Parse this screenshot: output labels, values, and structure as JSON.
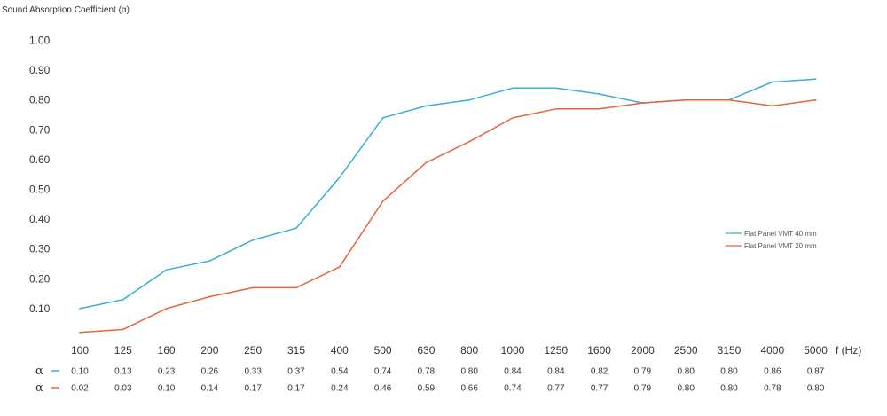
{
  "chart_data": {
    "type": "line",
    "ylabel": "Sound Absorption Coefficient (α)",
    "xunit": "f (Hz)",
    "ylim": [
      0.05,
      1.0
    ],
    "yticks": [
      "1.00",
      "0.90",
      "0.80",
      "0.70",
      "0.60",
      "0.50",
      "0.40",
      "0.30",
      "0.20",
      "0.10"
    ],
    "categories": [
      "100",
      "125",
      "160",
      "200",
      "250",
      "315",
      "400",
      "500",
      "630",
      "800",
      "1000",
      "1250",
      "1600",
      "2000",
      "2500",
      "3150",
      "4000",
      "5000"
    ],
    "grid": false,
    "legend_position": "right",
    "series": [
      {
        "name": "Flat Panel VMT 40 mm",
        "color": "#3aaed8",
        "row_symbol": "α",
        "values": [
          0.1,
          0.13,
          0.23,
          0.26,
          0.33,
          0.37,
          0.54,
          0.74,
          0.78,
          0.8,
          0.84,
          0.84,
          0.82,
          0.79,
          0.8,
          0.8,
          0.86,
          0.87
        ],
        "labels": [
          "0.10",
          "0.13",
          "0.23",
          "0.26",
          "0.33",
          "0.37",
          "0.54",
          "0.74",
          "0.78",
          "0.80",
          "0.84",
          "0.84",
          "0.82",
          "0.79",
          "0.80",
          "0.80",
          "0.86",
          "0.87"
        ]
      },
      {
        "name": "Flat Panel VMT 20 mm",
        "color": "#e8643c",
        "row_symbol": "α",
        "values": [
          0.02,
          0.03,
          0.1,
          0.14,
          0.17,
          0.17,
          0.24,
          0.46,
          0.59,
          0.66,
          0.74,
          0.77,
          0.77,
          0.79,
          0.8,
          0.8,
          0.78,
          0.8
        ],
        "labels": [
          "0.02",
          "0.03",
          "0.10",
          "0.14",
          "0.17",
          "0.17",
          "0.24",
          "0.46",
          "0.59",
          "0.66",
          "0.74",
          "0.77",
          "0.77",
          "0.79",
          "0.80",
          "0.80",
          "0.78",
          "0.80"
        ]
      }
    ]
  }
}
